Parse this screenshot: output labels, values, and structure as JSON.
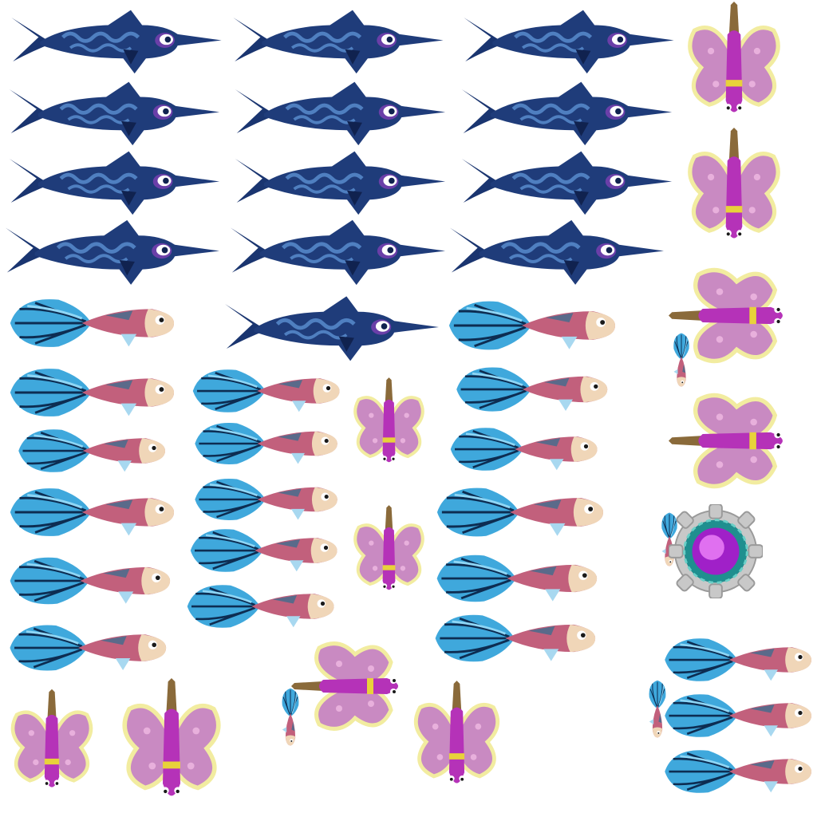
{
  "sheet": {
    "background": "#ffffff",
    "sprite_types": [
      {
        "name": "swordfish",
        "icon": "swordfish-icon",
        "colors": {
          "body": "#1f3c7a",
          "stripe": "#4f7fc0",
          "dark": "#10224f",
          "eye_ring": "#6a3fa8"
        }
      },
      {
        "name": "fantail-fish",
        "icon": "fantail-fish-icon",
        "colors": {
          "tail": "#3fa8dc",
          "tail_light": "#8fd6f5",
          "tail_line": "#0d2d52",
          "body": "#c2607c",
          "face": "#f0d6b8"
        }
      },
      {
        "name": "butterfly-fish",
        "icon": "butterfly-fish-icon",
        "colors": {
          "wing": "#c98ac2",
          "wing_edge": "#f2eca0",
          "body": "#b532b8",
          "band": "#e8d23a"
        }
      },
      {
        "name": "portal-orb",
        "icon": "portal-orb-icon",
        "colors": {
          "gear": "#c8c8c8",
          "ring": "#1f8f8f",
          "core": "#a020c8",
          "core_light": "#e070f0"
        }
      }
    ],
    "sprite_count": 55
  }
}
